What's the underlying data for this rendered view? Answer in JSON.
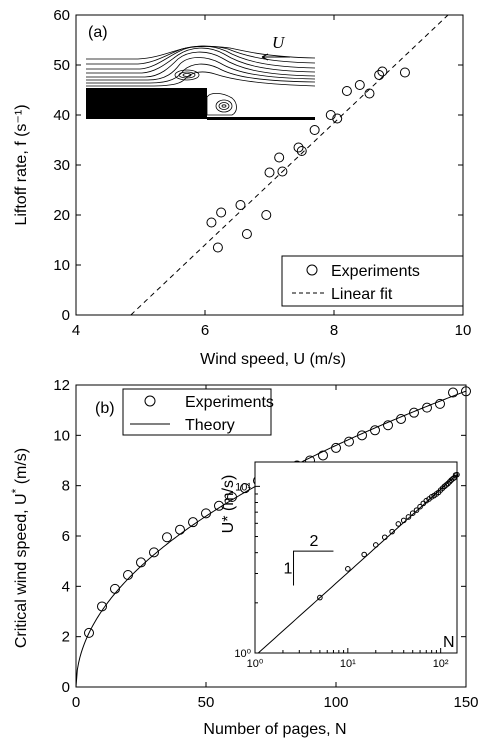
{
  "chart_data": [
    {
      "type": "scatter",
      "panel_label": "(a)",
      "xlabel": "Wind speed, U (m/s)",
      "ylabel": "Liftoff rate, f (s⁻¹)",
      "xlim": [
        4,
        10
      ],
      "ylim": [
        0,
        60
      ],
      "xticks": [
        "4",
        "6",
        "8",
        "10"
      ],
      "yticks": [
        "0",
        "10",
        "20",
        "30",
        "40",
        "50",
        "60"
      ],
      "inset_annotation": "U",
      "legend": {
        "position": "bottom-right",
        "entries": [
          "Experiments",
          "Linear fit"
        ]
      },
      "series": [
        {
          "name": "Experiments",
          "marker": "open-circle",
          "x": [
            6.1,
            6.2,
            6.25,
            6.55,
            6.65,
            6.95,
            7.0,
            7.15,
            7.2,
            7.45,
            7.5,
            7.7,
            7.95,
            8.05,
            8.2,
            8.4,
            8.55,
            8.7,
            8.75,
            9.1
          ],
          "y": [
            18.5,
            13.5,
            20.5,
            22.0,
            16.2,
            20.0,
            28.5,
            31.5,
            28.7,
            33.5,
            32.8,
            37.0,
            40.0,
            39.3,
            44.8,
            46.0,
            44.3,
            48.0,
            48.7,
            48.5
          ]
        },
        {
          "name": "Linear fit",
          "style": "dashed",
          "x": [
            4.85,
            9.85
          ],
          "y": [
            0,
            61.0
          ]
        }
      ]
    },
    {
      "type": "scatter",
      "panel_label": "(b)",
      "xlabel": "Number of pages, N",
      "ylabel": "Critical wind speed, U* (m/s)",
      "xlim": [
        0,
        150
      ],
      "ylim": [
        0,
        12
      ],
      "xticks": [
        "0",
        "50",
        "100",
        "150"
      ],
      "yticks": [
        "0",
        "2",
        "4",
        "6",
        "8",
        "10",
        "12"
      ],
      "legend": {
        "position": "top-left",
        "entries": [
          "Experiments",
          "Theory"
        ]
      },
      "series": [
        {
          "name": "Experiments",
          "marker": "open-circle",
          "x": [
            5,
            10,
            15,
            20,
            25,
            30,
            35,
            40,
            45,
            50,
            55,
            60,
            65,
            70,
            75,
            80,
            85,
            90,
            95,
            100,
            105,
            110,
            115,
            120,
            125,
            130,
            135,
            140,
            145,
            150
          ],
          "y": [
            2.15,
            3.2,
            3.9,
            4.45,
            4.95,
            5.35,
            5.95,
            6.25,
            6.55,
            6.9,
            7.2,
            7.55,
            7.9,
            8.2,
            8.4,
            8.65,
            8.8,
            9.0,
            9.2,
            9.5,
            9.75,
            10.0,
            10.2,
            10.4,
            10.65,
            10.9,
            11.1,
            11.25,
            11.7,
            11.75
          ]
        },
        {
          "name": "Theory",
          "style": "solid",
          "model": "U* = 0.96 * sqrt(N)",
          "coefficient": 0.96,
          "exponent": 0.5
        }
      ],
      "inset": {
        "type": "scatter",
        "scale": "log-log",
        "xlabel": "N",
        "ylabel": "U* (m/s)",
        "xlim": [
          1,
          150
        ],
        "ylim": [
          1,
          14
        ],
        "xticks": [
          "10⁰",
          "10¹",
          "10²"
        ],
        "yticks": [
          "10⁰",
          "10¹"
        ],
        "slope_triangle": {
          "run_label": "2",
          "rise_label": "1"
        }
      }
    }
  ]
}
